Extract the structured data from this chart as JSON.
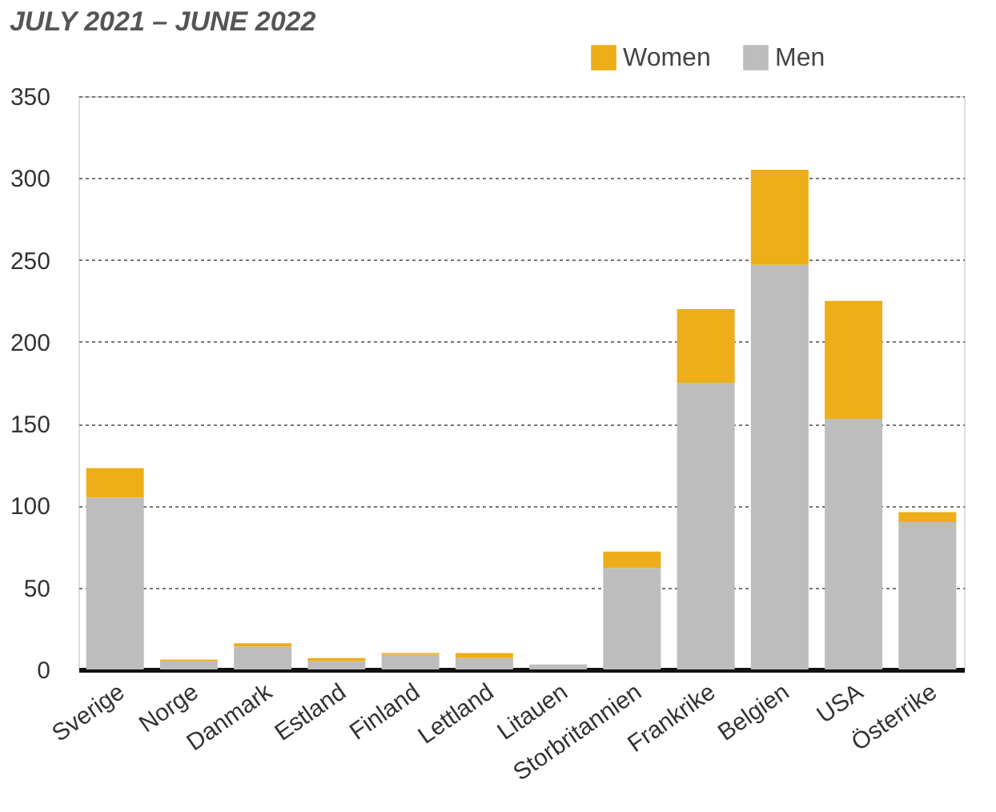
{
  "chart_data": {
    "type": "bar",
    "title": "JULY 2021 – JUNE 2022",
    "stacked": true,
    "categories": [
      "Sverige",
      "Norge",
      "Danmark",
      "Estland",
      "Finland",
      "Lettland",
      "Litauen",
      "Storbritannien",
      "Frankrike",
      "Belgien",
      "USA",
      "Österrike"
    ],
    "series": [
      {
        "name": "Men",
        "color": "#bdbdbd",
        "values": [
          105,
          5,
          14,
          5,
          9,
          7,
          3,
          62,
          175,
          247,
          153,
          90
        ]
      },
      {
        "name": "Women",
        "color": "#edae1a",
        "values": [
          18,
          1,
          2,
          2,
          1,
          3,
          0,
          10,
          45,
          58,
          72,
          6
        ]
      }
    ],
    "ylim": [
      0,
      350
    ],
    "yticks": [
      0,
      50,
      100,
      150,
      200,
      250,
      300,
      350
    ],
    "grid": "y",
    "legend": "top right"
  }
}
